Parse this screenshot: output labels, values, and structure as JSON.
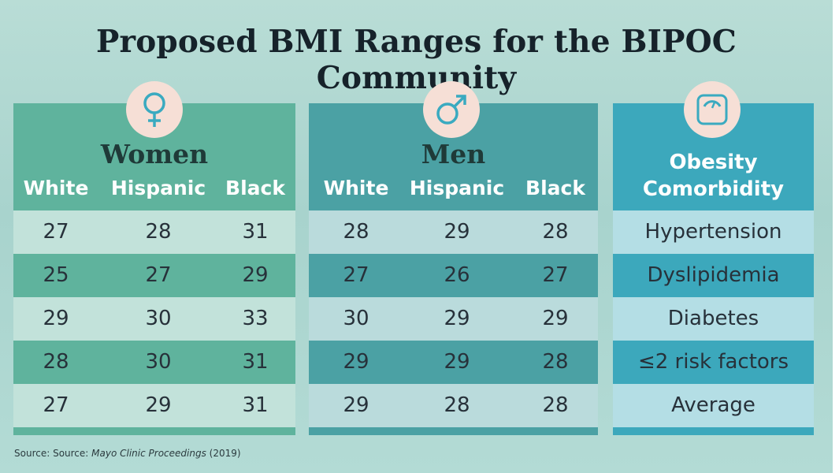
{
  "title": "Proposed BMI Ranges for the BIPOC Community",
  "women": {
    "title": "Women",
    "icon": "female-symbol-icon",
    "columns": [
      "White",
      "Hispanic",
      "Black"
    ],
    "rows": [
      [
        "27",
        "28",
        "31"
      ],
      [
        "25",
        "27",
        "29"
      ],
      [
        "29",
        "30",
        "33"
      ],
      [
        "28",
        "30",
        "31"
      ],
      [
        "27",
        "29",
        "31"
      ]
    ]
  },
  "men": {
    "title": "Men",
    "icon": "male-symbol-icon",
    "columns": [
      "White",
      "Hispanic",
      "Black"
    ],
    "rows": [
      [
        "28",
        "29",
        "28"
      ],
      [
        "27",
        "26",
        "27"
      ],
      [
        "30",
        "29",
        "29"
      ],
      [
        "29",
        "29",
        "28"
      ],
      [
        "29",
        "28",
        "28"
      ]
    ]
  },
  "comorbidity": {
    "title_line1": "Obesity",
    "title_line2": "Comorbidity",
    "icon": "scale-icon",
    "rows": [
      "Hypertension",
      "Dyslipidemia",
      "Diabetes",
      "≤2 risk factors",
      "Average"
    ]
  },
  "source": {
    "prefix": "Source: Source: ",
    "publication": "Mayo Clinic Proceedings",
    "year": " (2019)"
  },
  "colors": {
    "women_panel": "#5fb39d",
    "men_panel": "#4ba1a4",
    "comorbidity_panel": "#3ca8bc",
    "icon_circle": "#f6dfd6",
    "icon_stroke": "#3aaac0"
  }
}
